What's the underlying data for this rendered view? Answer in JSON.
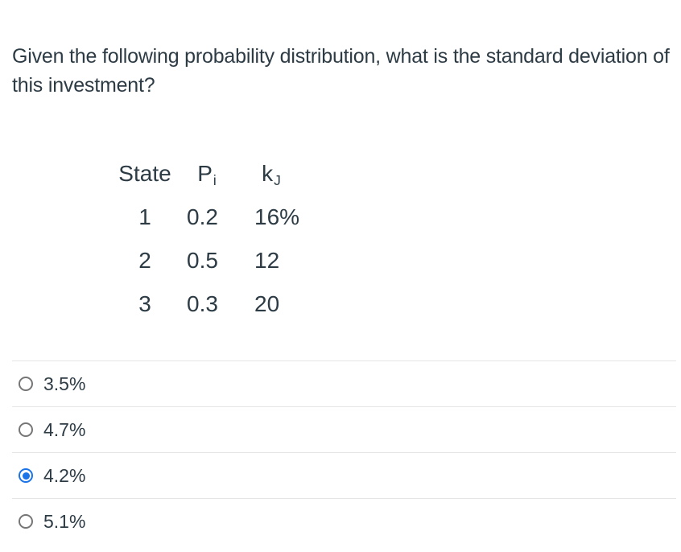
{
  "question": {
    "lines": [
      "Given the following probability distribution, what is the standard deviation of",
      "this investment?"
    ]
  },
  "table": {
    "headers": [
      {
        "text": "State",
        "sub": ""
      },
      {
        "text": "P",
        "sub": "i"
      },
      {
        "text": "k",
        "sub": "J"
      }
    ],
    "rows": [
      [
        "1",
        "0.2",
        "16%"
      ],
      [
        "2",
        "0.5",
        "12"
      ],
      [
        "3",
        "0.3",
        "20"
      ]
    ]
  },
  "options": [
    {
      "label": "3.5%",
      "selected": false
    },
    {
      "label": "4.7%",
      "selected": false
    },
    {
      "label": "4.2%",
      "selected": true
    },
    {
      "label": "5.1%",
      "selected": false
    }
  ],
  "colors": {
    "text": "#2D3B45",
    "divider": "#E5E5E5",
    "radio_unselected_ring": "#767676",
    "radio_selected": "#1A73E8",
    "background": "#FFFFFF"
  }
}
